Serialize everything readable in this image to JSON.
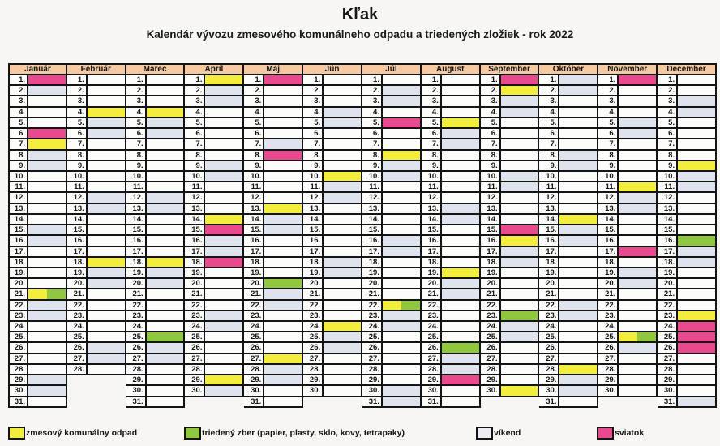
{
  "title": "Kľak",
  "subtitle": "Kalendár vývozu zmesového komunálneho odpadu a triedených zložiek - rok 2022",
  "colors": {
    "waste": "#f3ee3d",
    "sorted": "#8fc73e",
    "weekend": "#dfe3ed",
    "holiday": "#e9498d",
    "cell": "#fcfcfa",
    "header_bg": "#f5caa2",
    "border": "#141414"
  },
  "legend": [
    {
      "key": "waste",
      "label": "zmesový komunálny odpad"
    },
    {
      "key": "sorted",
      "label": "triedený zber (papier, plasty, sklo, kovy, tetrapaky)"
    },
    {
      "key": "weekend",
      "label": "víkend"
    },
    {
      "key": "holiday",
      "label": "sviatok"
    }
  ],
  "code_legend": {
    "": "none",
    "W": "weekend",
    "Y": "waste-collection",
    "G": "sorted-collection",
    "P": "holiday",
    "YG": "waste+sorted"
  },
  "months": [
    {
      "name": "Január",
      "codes": [
        "P",
        "W",
        "",
        "",
        "",
        "P",
        "Y",
        "W",
        "W",
        "",
        "",
        "",
        "",
        "",
        "W",
        "W",
        "",
        "",
        "",
        "",
        "YG",
        "W",
        "W",
        "",
        "",
        "",
        "",
        "",
        "W",
        "W",
        ""
      ]
    },
    {
      "name": "Február",
      "codes": [
        "",
        "",
        "",
        "Y",
        "W",
        "W",
        "",
        "",
        "",
        "",
        "",
        "W",
        "W",
        "",
        "",
        "",
        "",
        "Y",
        "W",
        "W",
        "",
        "",
        "",
        "",
        "",
        "W",
        "W",
        ""
      ]
    },
    {
      "name": "Marec",
      "codes": [
        "",
        "",
        "",
        "Y",
        "W",
        "W",
        "",
        "",
        "",
        "",
        "",
        "W",
        "W",
        "",
        "",
        "",
        "",
        "Y",
        "W",
        "W",
        "",
        "",
        "",
        "",
        "G",
        "W",
        "W",
        "",
        "",
        "",
        ""
      ]
    },
    {
      "name": "Apríl",
      "codes": [
        "Y",
        "W",
        "W",
        "",
        "",
        "",
        "",
        "",
        "W",
        "W",
        "",
        "",
        "",
        "Y",
        "P",
        "W",
        "W",
        "P",
        "",
        "",
        "",
        "",
        "W",
        "W",
        "",
        "",
        "",
        "",
        "Y",
        "W"
      ]
    },
    {
      "name": "Máj",
      "codes": [
        "P",
        "",
        "",
        "",
        "",
        "",
        "W",
        "P",
        "",
        "",
        "",
        "",
        "Y",
        "W",
        "W",
        "",
        "",
        "",
        "",
        "G",
        "W",
        "W",
        "",
        "",
        "",
        "",
        "Y",
        "W",
        "W",
        "",
        ""
      ]
    },
    {
      "name": "Jún",
      "codes": [
        "",
        "",
        "",
        "W",
        "W",
        "",
        "",
        "",
        "",
        "Y",
        "W",
        "W",
        "",
        "",
        "",
        "",
        "",
        "W",
        "W",
        "",
        "",
        "",
        "",
        "Y",
        "W",
        "W",
        "",
        "",
        "",
        ""
      ]
    },
    {
      "name": "Júl",
      "codes": [
        "",
        "W",
        "W",
        "",
        "P",
        "",
        "",
        "Y",
        "W",
        "W",
        "",
        "",
        "",
        "",
        "",
        "W",
        "W",
        "",
        "",
        "",
        "",
        "YG",
        "W",
        "W",
        "",
        "",
        "",
        "",
        "",
        "W",
        "W"
      ]
    },
    {
      "name": "August",
      "codes": [
        "",
        "",
        "",
        "",
        "Y",
        "W",
        "W",
        "",
        "",
        "",
        "",
        "",
        "W",
        "W",
        "",
        "",
        "",
        "",
        "Y",
        "W",
        "W",
        "",
        "",
        "",
        "",
        "G",
        "W",
        "W",
        "P",
        "",
        ""
      ]
    },
    {
      "name": "September",
      "codes": [
        "P",
        "Y",
        "W",
        "W",
        "",
        "",
        "",
        "",
        "",
        "W",
        "W",
        "",
        "",
        "",
        "P",
        "Y",
        "W",
        "W",
        "",
        "",
        "",
        "",
        "G",
        "W",
        "W",
        "",
        "",
        "",
        "",
        "Y"
      ]
    },
    {
      "name": "Október",
      "codes": [
        "W",
        "W",
        "",
        "",
        "",
        "",
        "",
        "W",
        "W",
        "",
        "",
        "",
        "",
        "Y",
        "W",
        "W",
        "",
        "",
        "",
        "",
        "",
        "W",
        "W",
        "",
        "",
        "",
        "",
        "Y",
        "W",
        "W",
        ""
      ]
    },
    {
      "name": "November",
      "codes": [
        "P",
        "",
        "",
        "",
        "W",
        "W",
        "",
        "",
        "",
        "",
        "Y",
        "W",
        "W",
        "",
        "",
        "",
        "P",
        "",
        "W",
        "W",
        "",
        "",
        "",
        "",
        "YG",
        "W",
        "",
        "",
        "",
        ""
      ]
    },
    {
      "name": "December",
      "codes": [
        "",
        "",
        "W",
        "W",
        "",
        "",
        "",
        "",
        "Y",
        "W",
        "W",
        "",
        "",
        "",
        "",
        "G",
        "W",
        "W",
        "",
        "",
        "",
        "",
        "Y",
        "P",
        "P",
        "P",
        "",
        "",
        "",
        "",
        "W"
      ]
    }
  ]
}
